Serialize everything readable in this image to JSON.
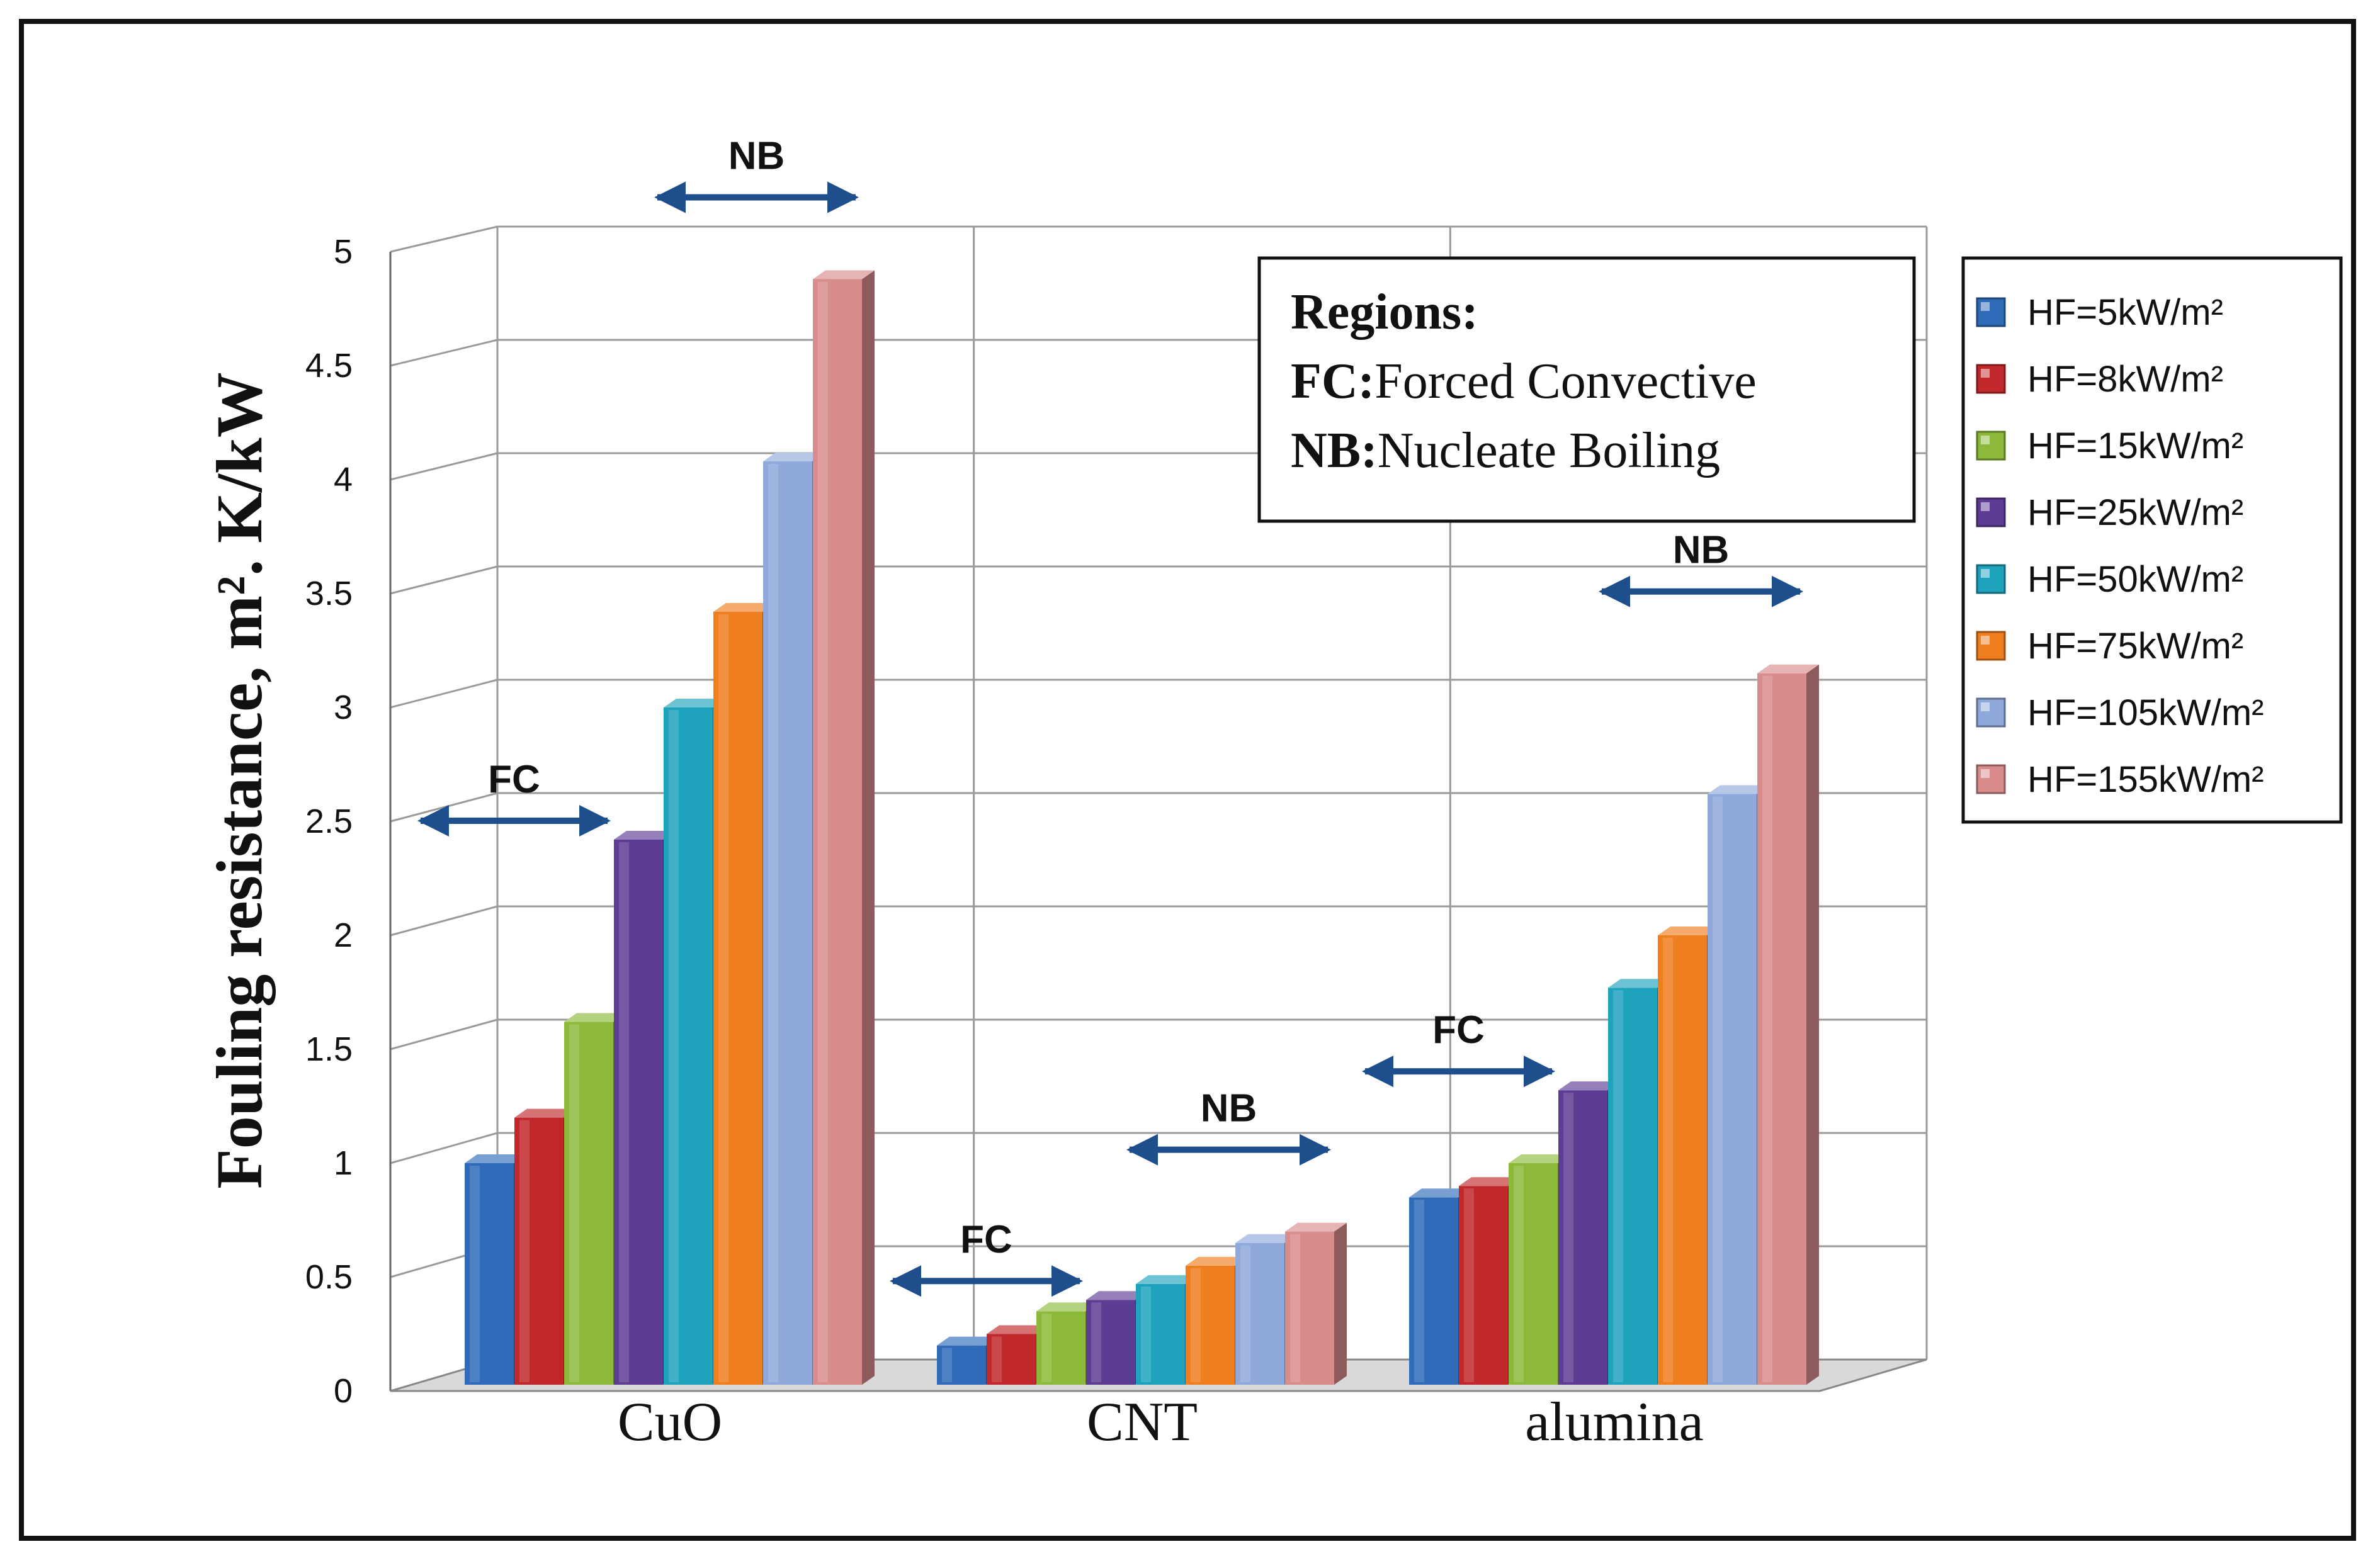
{
  "chart_data": {
    "type": "bar",
    "title": "",
    "xlabel": "",
    "ylabel": "Fouling resistance, m². K/kW",
    "ylim": [
      0,
      5
    ],
    "yticks": [
      "0",
      "0.5",
      "1",
      "1.5",
      "2",
      "2.5",
      "3",
      "3.5",
      "4",
      "4.5",
      "5"
    ],
    "categories": [
      "CuO",
      "CNT",
      "alumina"
    ],
    "series": [
      {
        "name": "HF=5kW/m²",
        "color": "#2f6bb8",
        "values": [
          1.0,
          0.2,
          0.85
        ]
      },
      {
        "name": "HF=8kW/m²",
        "color": "#c0282b",
        "values": [
          1.2,
          0.25,
          0.9
        ]
      },
      {
        "name": "HF=15kW/m²",
        "color": "#8db93a",
        "values": [
          1.62,
          0.35,
          1.0
        ]
      },
      {
        "name": "HF=25kW/m²",
        "color": "#5d3c93",
        "values": [
          2.42,
          0.4,
          1.32
        ]
      },
      {
        "name": "HF=50kW/m²",
        "color": "#1fa3bd",
        "values": [
          3.0,
          0.47,
          1.77
        ]
      },
      {
        "name": "HF=75kW/m²",
        "color": "#ef7e1e",
        "values": [
          3.42,
          0.55,
          2.0
        ]
      },
      {
        "name": "HF=105kW/m²",
        "color": "#8fa9db",
        "values": [
          4.08,
          0.65,
          2.62
        ]
      },
      {
        "name": "HF=155kW/m²",
        "color": "#d98c8c",
        "values": [
          4.88,
          0.7,
          3.15
        ]
      }
    ],
    "legend_position": "right",
    "grid": true,
    "annotations": {
      "box_title": "Regions:",
      "fc_key": "FC:",
      "fc_value": "Forced Convective",
      "nb_key": "NB:",
      "nb_value": "Nucleate Boiling",
      "regions": [
        {
          "label": "FC",
          "category": "CuO",
          "from_series": 0,
          "to_series": 3
        },
        {
          "label": "NB",
          "category": "CuO",
          "from_series": 4,
          "to_series": 7
        },
        {
          "label": "FC",
          "category": "CNT",
          "from_series": 0,
          "to_series": 3
        },
        {
          "label": "NB",
          "category": "CNT",
          "from_series": 4,
          "to_series": 7
        },
        {
          "label": "FC",
          "category": "alumina",
          "from_series": 0,
          "to_series": 3
        },
        {
          "label": "NB",
          "category": "alumina",
          "from_series": 4,
          "to_series": 7
        }
      ]
    },
    "colors": {
      "arrow": "#1f4e8c",
      "grid": "#9a9a9a"
    }
  }
}
